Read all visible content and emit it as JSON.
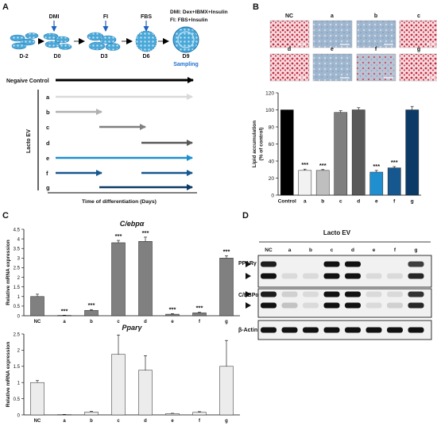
{
  "panels": {
    "A": "A",
    "B": "B",
    "C": "C",
    "D": "D"
  },
  "panel_a": {
    "stages": [
      "D-2",
      "D0",
      "D3",
      "D6",
      "D9"
    ],
    "treatments": [
      "DMI",
      "FI",
      "FBS"
    ],
    "legend": [
      "DMI: Dex+IBMX+Insulin",
      "FI: FBS+Insulin"
    ],
    "sampling": "Sampling",
    "negative_control": "Negaive Control",
    "group_label": "Lacto EV",
    "rows": [
      "a",
      "b",
      "c",
      "d",
      "e",
      "f",
      "g"
    ],
    "xlabel": "Time of differentiation (Days)",
    "colors": {
      "a": "#d9d9d9",
      "b": "#b0b0b0",
      "c": "#7f7f7f",
      "d": "#595959",
      "e": "#1f8fd0",
      "f": "#16578f",
      "g": "#0b3a66"
    }
  },
  "panel_b": {
    "image_labels": [
      "NC",
      "a",
      "b",
      "c",
      "d",
      "e",
      "f",
      "g"
    ]
  },
  "chart_data": [
    {
      "id": "lipid",
      "type": "bar",
      "categories": [
        "Control",
        "a",
        "b",
        "c",
        "d",
        "e",
        "f",
        "g"
      ],
      "values": [
        100,
        29,
        29,
        97,
        100,
        27,
        32,
        100
      ],
      "errors": [
        0,
        1.5,
        1,
        2,
        2.5,
        2,
        1.5,
        4
      ],
      "colors": [
        "#000000",
        "#f2f2f2",
        "#bfbfbf",
        "#7f7f7f",
        "#595959",
        "#1f8fd0",
        "#16578f",
        "#0b3a66"
      ],
      "significance": [
        "",
        "***",
        "***",
        "",
        "",
        "***",
        "***",
        ""
      ],
      "ylabel": "Lipid accumulation\n(% of control)",
      "ylim": [
        0,
        120
      ],
      "yticks": [
        0,
        20,
        40,
        60,
        80,
        100,
        120
      ]
    },
    {
      "id": "cebpa",
      "type": "bar",
      "title": "C/ebpα",
      "categories": [
        "NC",
        "a",
        "b",
        "c",
        "d",
        "e",
        "f",
        "g"
      ],
      "values": [
        1.0,
        0.02,
        0.28,
        3.8,
        3.87,
        0.08,
        0.15,
        3.0
      ],
      "errors": [
        0.12,
        0.01,
        0.04,
        0.12,
        0.22,
        0.03,
        0.03,
        0.12
      ],
      "significance": [
        "",
        "***",
        "***",
        "***",
        "***",
        "***",
        "***",
        "***"
      ],
      "ylabel": "Relative mRNA expression",
      "ylim": [
        0,
        4.5
      ],
      "yticks": [
        0,
        0.5,
        1,
        1.5,
        2,
        2.5,
        3,
        3.5,
        4,
        4.5
      ]
    },
    {
      "id": "pparg",
      "type": "bar",
      "title": "Pparγ",
      "categories": [
        "NC",
        "a",
        "b",
        "c",
        "d",
        "e",
        "f",
        "g"
      ],
      "values": [
        1.0,
        0.01,
        0.09,
        1.87,
        1.38,
        0.04,
        0.08,
        1.5
      ],
      "errors": [
        0.06,
        0.005,
        0.02,
        0.6,
        0.45,
        0.01,
        0.02,
        0.8
      ],
      "ylabel": "Relative mRNA expression",
      "ylim": [
        0,
        2.5
      ],
      "yticks": [
        0,
        0.5,
        1,
        1.5,
        2,
        2.5
      ]
    }
  ],
  "panel_d": {
    "title": "Lacto EV",
    "lanes": [
      "NC",
      "a",
      "b",
      "c",
      "d",
      "e",
      "f",
      "g"
    ],
    "blots": [
      "PPARγ",
      "C/EBPα",
      "β-Actin"
    ]
  }
}
